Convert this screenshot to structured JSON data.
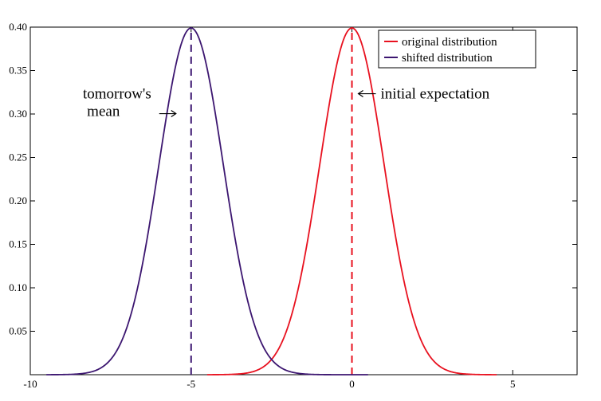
{
  "chart_data": {
    "type": "line",
    "title": "",
    "xlabel": "",
    "ylabel": "",
    "xlim": [
      -10,
      7
    ],
    "ylim": [
      0,
      0.4
    ],
    "x_ticks": [
      -10,
      -5,
      0,
      5
    ],
    "x_tick_labels": [
      "-10",
      "-5",
      "0",
      "5"
    ],
    "y_ticks": [
      0.05,
      0.1,
      0.15,
      0.2,
      0.25,
      0.3,
      0.35,
      0.4
    ],
    "y_tick_labels": [
      "0.05",
      "0.10",
      "0.15",
      "0.20",
      "0.25",
      "0.30",
      "0.35",
      "0.40"
    ],
    "grid": false,
    "legend_position": "top-right",
    "series": [
      {
        "name": "original distribution",
        "color": "#e8111f",
        "distribution": "normal",
        "mean": 0,
        "sd": 1.0,
        "x_range": [
          -4.5,
          4.5
        ]
      },
      {
        "name": "shifted distribution",
        "color": "#3c1670",
        "distribution": "normal",
        "mean": -5,
        "sd": 1.0,
        "x_range": [
          -9.5,
          0.5
        ]
      }
    ],
    "reference_lines": [
      {
        "x": 0,
        "y_max": 0.4,
        "color": "#e8111f",
        "style": "dashed"
      },
      {
        "x": -5,
        "y_max": 0.4,
        "color": "#3c1670",
        "style": "dashed"
      }
    ],
    "annotations": [
      {
        "lines": [
          "initial expectation"
        ],
        "arrow": "left",
        "x": 0,
        "y": 0.305
      },
      {
        "lines": [
          "tomorrow's",
          "mean"
        ],
        "arrow": "right",
        "x": -5,
        "y": 0.305
      }
    ]
  }
}
